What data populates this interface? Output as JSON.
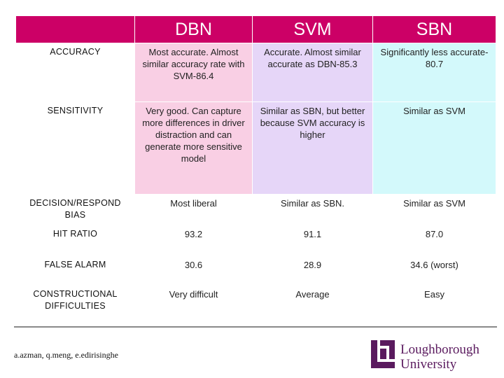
{
  "table": {
    "headers": [
      "",
      "DBN",
      "SVM",
      "SBN"
    ],
    "rows": [
      {
        "label": "ACCURACY",
        "dbn": "Most accurate. Almost similar accuracy rate with SVM-86.4",
        "svm": "Accurate. Almost similar accurate as DBN-85.3",
        "sbn": "Significantly less accurate-80.7"
      },
      {
        "label": "SENSITIVITY",
        "dbn": "Very good. Can capture more differences in driver distraction and can generate more sensitive model",
        "svm": "Similar as SBN, but better because SVM accuracy is higher",
        "sbn": "Similar as SVM"
      },
      {
        "label": "DECISION/RESPOND BIAS",
        "dbn": "Most liberal",
        "svm": "Similar as SBN.",
        "sbn": "Similar as SVM"
      },
      {
        "label": "HIT RATIO",
        "dbn": "93.2",
        "svm": "91.1",
        "sbn": "87.0"
      },
      {
        "label": "FALSE ALARM",
        "dbn": "30.6",
        "svm": "28.9",
        "sbn": "34.6 (worst)"
      },
      {
        "label": "CONSTRUCTIONAL DIFFICULTIES",
        "dbn": "Very difficult",
        "svm": "Average",
        "sbn": "Easy"
      }
    ]
  },
  "footer": {
    "authors": "a.azman, q.meng, e.edirisinghe",
    "logo_line1": "Loughborough",
    "logo_line2": "University"
  },
  "colors": {
    "header": "#cc0066",
    "dbn": "#f9cfe4",
    "svm": "#e6d6f8",
    "sbn": "#d3f9fb",
    "logo": "#5a1a5e"
  }
}
